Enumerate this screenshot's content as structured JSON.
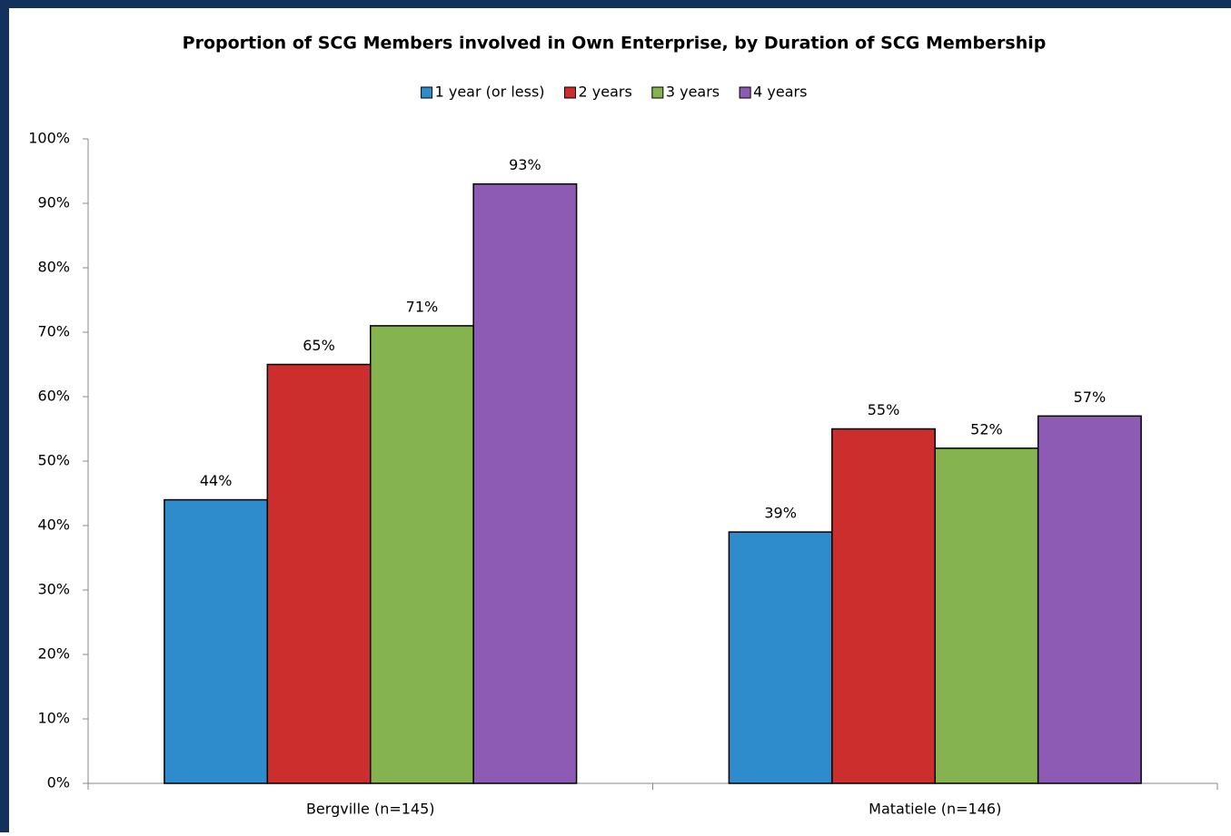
{
  "chart_data": {
    "type": "bar",
    "title": "Proportion of SCG Members involved in Own Enterprise, by Duration of SCG Membership",
    "categories": [
      "Bergville (n=145)",
      "Matatiele (n=146)"
    ],
    "series": [
      {
        "name": "1 year (or less)",
        "color": "#2e8bcc",
        "values": [
          44,
          39
        ],
        "value_labels": [
          "44%",
          "39%"
        ]
      },
      {
        "name": "2 years",
        "color": "#cc2e2e",
        "values": [
          65,
          55
        ],
        "value_labels": [
          "65%",
          "55%"
        ]
      },
      {
        "name": "3 years",
        "color": "#84b350",
        "values": [
          71,
          52
        ],
        "value_labels": [
          "71%",
          "52%"
        ]
      },
      {
        "name": "4 years",
        "color": "#8e5bb4",
        "values": [
          93,
          57
        ],
        "value_labels": [
          "93%",
          "57%"
        ]
      }
    ],
    "ylim": [
      0,
      100
    ],
    "yticks": [
      {
        "value": 0,
        "label": "0%"
      },
      {
        "value": 10,
        "label": "10%"
      },
      {
        "value": 20,
        "label": "20%"
      },
      {
        "value": 30,
        "label": "30%"
      },
      {
        "value": 40,
        "label": "40%"
      },
      {
        "value": 50,
        "label": "50%"
      },
      {
        "value": 60,
        "label": "60%"
      },
      {
        "value": 70,
        "label": "70%"
      },
      {
        "value": 80,
        "label": "80%"
      },
      {
        "value": 90,
        "label": "90%"
      },
      {
        "value": 100,
        "label": "100%"
      }
    ],
    "legend": "top"
  }
}
